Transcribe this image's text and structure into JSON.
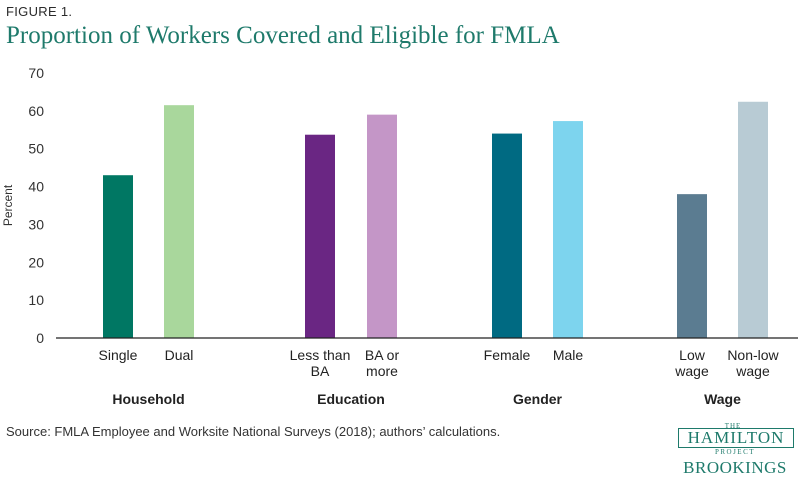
{
  "figure_label": "FIGURE 1.",
  "title": "Proportion of Workers Covered and Eligible for FMLA",
  "source": "Source:  FMLA Employee and Worksite National Surveys (2018); authors’ calculations.",
  "logo": {
    "the": "THE",
    "hamilton": "HAMILTON",
    "project": "PROJECT",
    "brookings": "BROOKINGS"
  },
  "chart_data": {
    "type": "bar",
    "ylabel": "Percent",
    "ylim": [
      0,
      70
    ],
    "yticks": [
      0,
      10,
      20,
      30,
      40,
      50,
      60,
      70
    ],
    "grid": false,
    "groups": [
      {
        "name": "Household",
        "bars": [
          {
            "label": [
              "Single"
            ],
            "value": 43,
            "color": "#007763"
          },
          {
            "label": [
              "Dual"
            ],
            "value": 61.5,
            "color": "#a9d79c"
          }
        ]
      },
      {
        "name": "Education",
        "bars": [
          {
            "label": [
              "Less than",
              "BA"
            ],
            "value": 53.7,
            "color": "#6a2683"
          },
          {
            "label": [
              "BA or",
              "more"
            ],
            "value": 59,
            "color": "#c496c7"
          }
        ]
      },
      {
        "name": "Gender",
        "bars": [
          {
            "label": [
              "Female"
            ],
            "value": 54,
            "color": "#006a82"
          },
          {
            "label": [
              "Male"
            ],
            "value": 57.3,
            "color": "#7dd4ee"
          }
        ]
      },
      {
        "name": "Wage",
        "bars": [
          {
            "label": [
              "Low",
              "wage"
            ],
            "value": 38,
            "color": "#5b7c91"
          },
          {
            "label": [
              "Non-low",
              "wage"
            ],
            "value": 62.4,
            "color": "#b8cbd4"
          }
        ]
      }
    ]
  }
}
